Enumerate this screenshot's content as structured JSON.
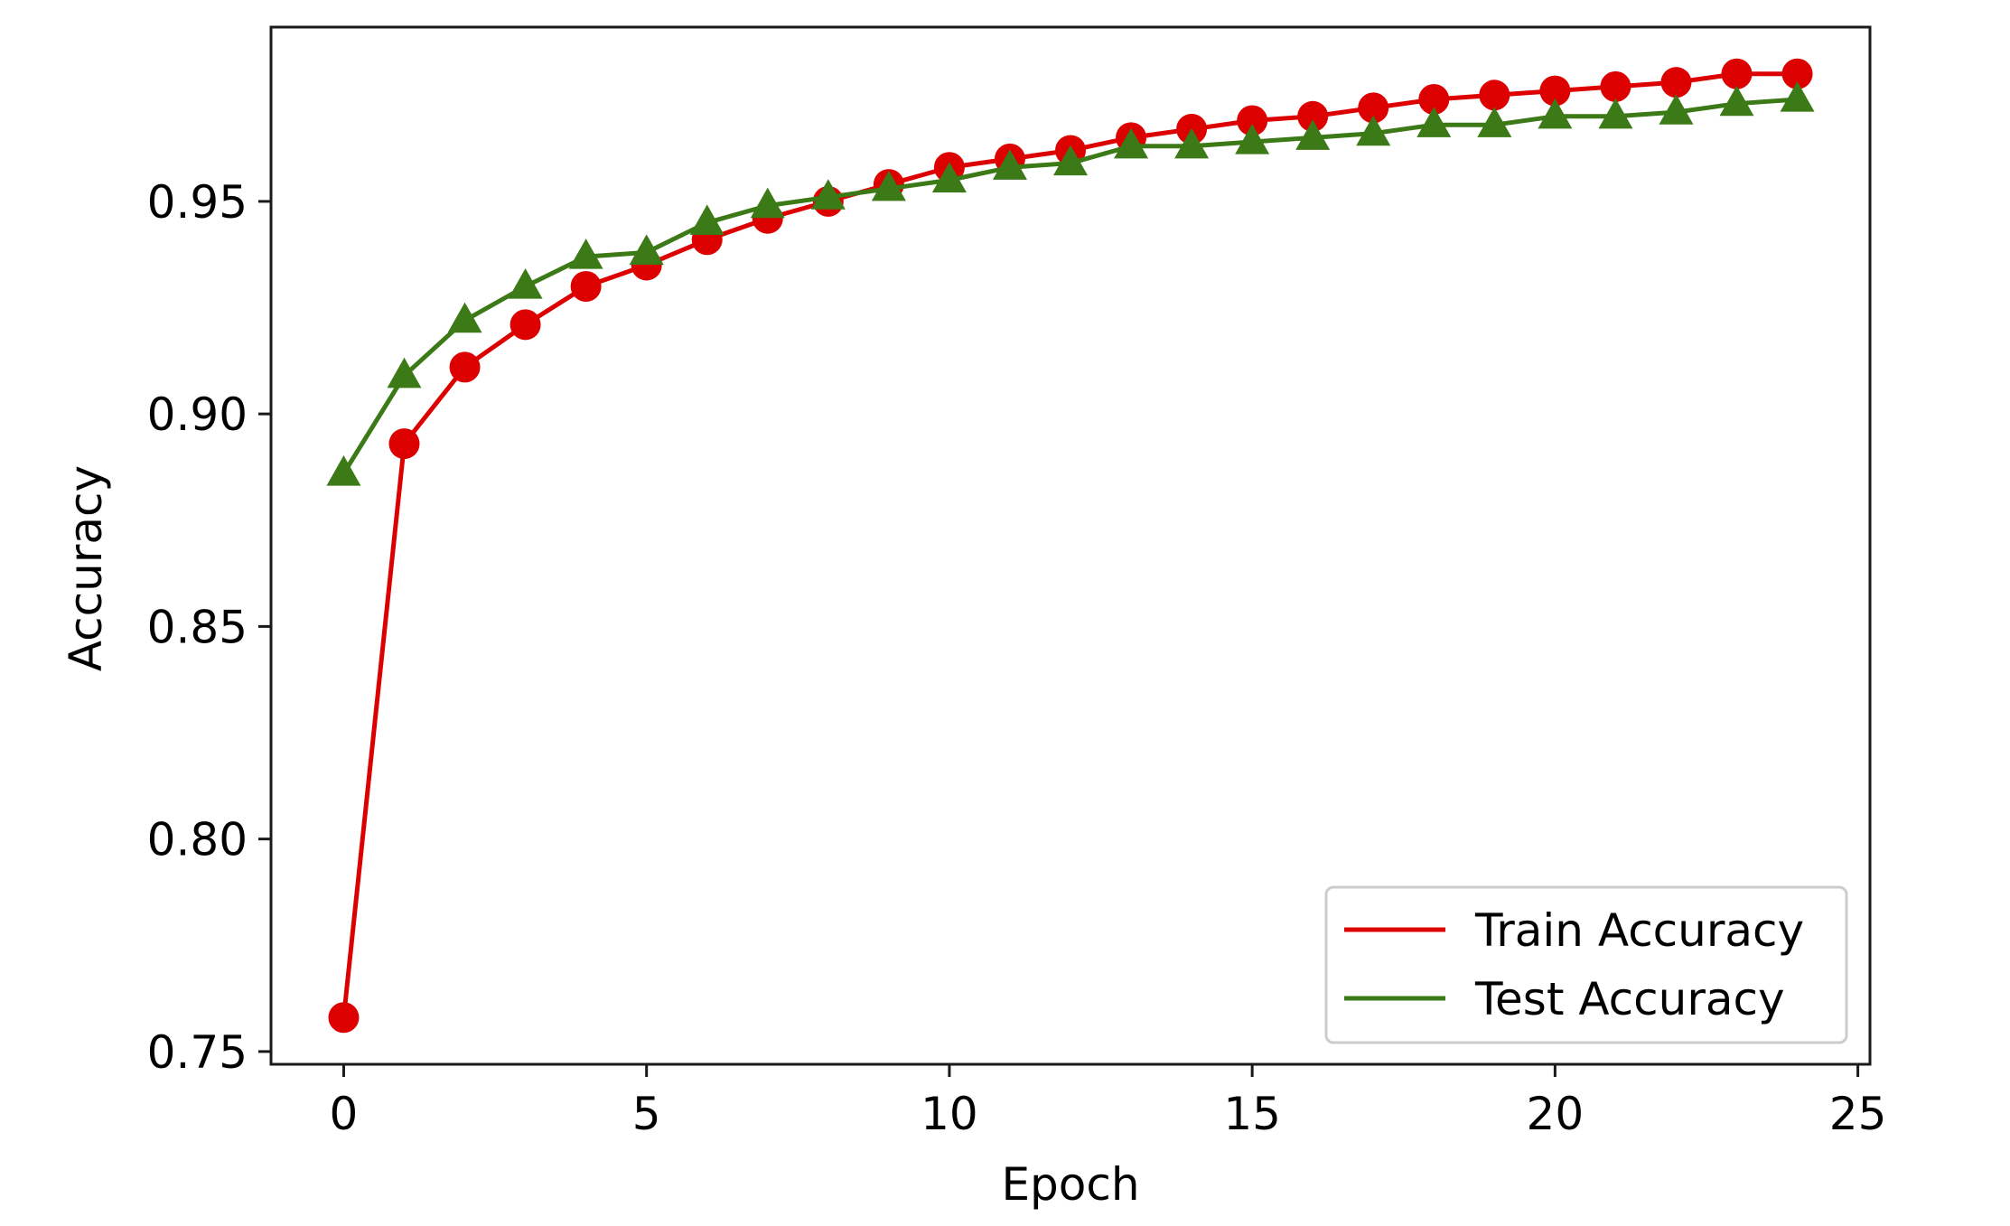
{
  "chart_data": {
    "type": "line",
    "title": "",
    "xlabel": "Epoch",
    "ylabel": "Accuracy",
    "xlim": [
      -1.2,
      25.2
    ],
    "ylim": [
      0.747,
      0.991
    ],
    "xticks": [
      0,
      5,
      10,
      15,
      20,
      25
    ],
    "xtick_labels": [
      "0",
      "5",
      "10",
      "15",
      "20",
      "25"
    ],
    "yticks": [
      0.75,
      0.8,
      0.85,
      0.9,
      0.95
    ],
    "ytick_labels": [
      "0.75",
      "0.80",
      "0.85",
      "0.90",
      "0.95"
    ],
    "grid": false,
    "legend_position": "lower-right",
    "x": [
      0,
      1,
      2,
      3,
      4,
      5,
      6,
      7,
      8,
      9,
      10,
      11,
      12,
      13,
      14,
      15,
      16,
      17,
      18,
      19,
      20,
      21,
      22,
      23,
      24
    ],
    "series": [
      {
        "name": "Train Accuracy",
        "color": "#dd0000",
        "marker": "circle",
        "values": [
          0.758,
          0.893,
          0.911,
          0.921,
          0.93,
          0.935,
          0.941,
          0.946,
          0.95,
          0.954,
          0.958,
          0.96,
          0.962,
          0.965,
          0.967,
          0.969,
          0.97,
          0.972,
          0.974,
          0.975,
          0.976,
          0.977,
          0.978,
          0.98,
          0.98
        ]
      },
      {
        "name": "Test Accuracy",
        "color": "#3b7a17",
        "marker": "triangle",
        "values": [
          0.886,
          0.909,
          0.922,
          0.93,
          0.937,
          0.938,
          0.945,
          0.949,
          0.951,
          0.953,
          0.955,
          0.958,
          0.959,
          0.963,
          0.963,
          0.964,
          0.965,
          0.966,
          0.968,
          0.968,
          0.97,
          0.97,
          0.971,
          0.973,
          0.974
        ]
      }
    ]
  }
}
